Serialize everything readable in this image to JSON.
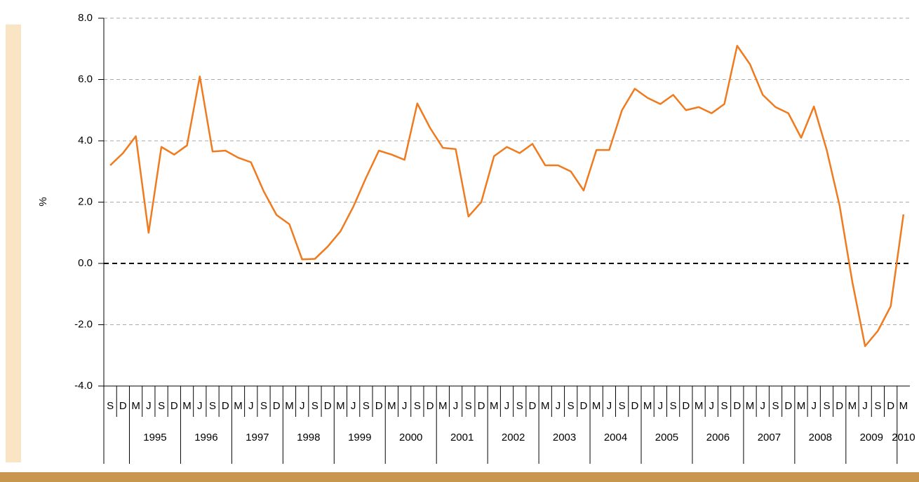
{
  "chart_data": {
    "type": "line",
    "ylabel": "%",
    "categories": [
      "S",
      "D",
      "M",
      "J",
      "S",
      "D",
      "M",
      "J",
      "S",
      "D",
      "M",
      "J",
      "S",
      "D",
      "M",
      "J",
      "S",
      "D",
      "M",
      "J",
      "S",
      "D",
      "M",
      "J",
      "S",
      "D",
      "M",
      "J",
      "S",
      "D",
      "M",
      "J",
      "S",
      "D",
      "M",
      "J",
      "S",
      "D",
      "M",
      "J",
      "S",
      "D",
      "M",
      "J",
      "S",
      "D",
      "M",
      "J",
      "S",
      "D",
      "M",
      "J",
      "S",
      "D",
      "M",
      "J",
      "S",
      "D",
      "M",
      "J",
      "S",
      "D",
      "M"
    ],
    "years": [
      "1995",
      "1996",
      "1997",
      "1998",
      "1999",
      "2000",
      "2001",
      "2002",
      "2003",
      "2004",
      "2005",
      "2006",
      "2007",
      "2008",
      "2009",
      "2010"
    ],
    "series": [
      {
        "name": "%",
        "color": "#f07a1e",
        "values": [
          3.2,
          3.6,
          4.15,
          1.0,
          3.8,
          3.55,
          3.85,
          6.1,
          3.65,
          3.68,
          3.45,
          3.3,
          2.35,
          1.58,
          1.28,
          0.13,
          0.15,
          0.55,
          1.05,
          1.85,
          2.8,
          3.68,
          3.55,
          3.38,
          5.22,
          4.42,
          3.77,
          3.73,
          1.53,
          2.0,
          3.5,
          3.8,
          3.6,
          3.9,
          3.2,
          3.2,
          3.0,
          2.38,
          3.7,
          3.7,
          5.0,
          5.7,
          5.4,
          5.2,
          5.5,
          5.0,
          5.1,
          4.9,
          5.2,
          7.1,
          6.5,
          5.5,
          5.1,
          4.9,
          4.1,
          5.12,
          3.7,
          1.9,
          -0.6,
          -2.7,
          -2.2,
          -1.4,
          1.6
        ]
      }
    ],
    "ylim": [
      -4,
      8
    ],
    "yticks": [
      {
        "value": -4,
        "label": "-4.0"
      },
      {
        "value": -2,
        "label": "-2.0"
      },
      {
        "value": 0,
        "label": "0.0"
      },
      {
        "value": 2,
        "label": "2.0"
      },
      {
        "value": 4,
        "label": "4.0"
      },
      {
        "value": 6,
        "label": "6.0"
      },
      {
        "value": 8,
        "label": "8.0"
      }
    ],
    "grid": true
  }
}
